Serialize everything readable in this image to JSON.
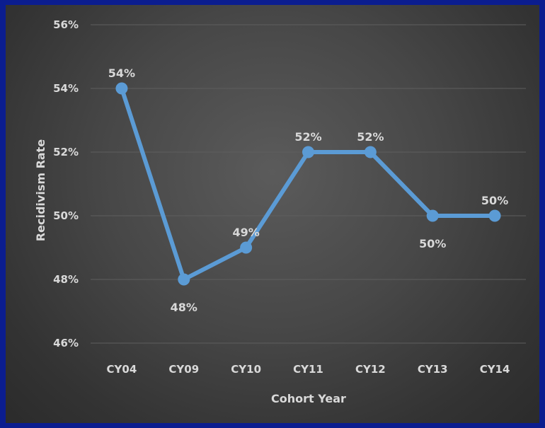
{
  "chart_data": {
    "type": "line",
    "title": "",
    "xlabel": "Cohort Year",
    "ylabel": "Recidivism  Rate",
    "categories": [
      "CY04",
      "CY09",
      "CY10",
      "CY11",
      "CY12",
      "CY13",
      "CY14"
    ],
    "series": [
      {
        "values": [
          54,
          48,
          49,
          52,
          52,
          50,
          50
        ],
        "labels": [
          "54%",
          "48%",
          "49%",
          "52%",
          "52%",
          "50%",
          "50%"
        ],
        "color": "#5b9bd5"
      }
    ],
    "ylim": [
      46,
      56
    ],
    "yticks": [
      46,
      48,
      50,
      52,
      54,
      56
    ],
    "ytick_labels": [
      "46%",
      "48%",
      "50%",
      "52%",
      "54%",
      "56%"
    ],
    "grid": true,
    "legend": "none",
    "colors": {
      "background_outer": "#0b1d8f",
      "plot_bg": "#474747",
      "text": "#d9d9d9"
    }
  }
}
